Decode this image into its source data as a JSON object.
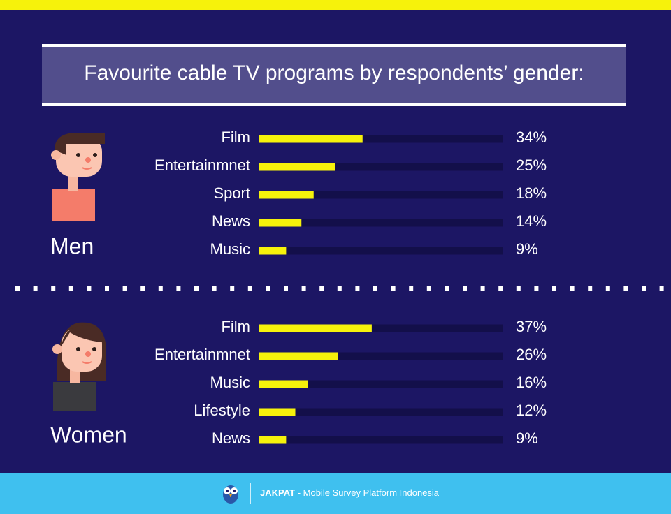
{
  "header": {
    "title": "Favourite cable TV programs by respondents’ gender:"
  },
  "chart_data": [
    {
      "type": "bar",
      "orientation": "horizontal",
      "title": "Men",
      "categories": [
        "Film",
        "Entertainmnet",
        "Sport",
        "News",
        "Music"
      ],
      "values": [
        34,
        25,
        18,
        14,
        9
      ],
      "value_labels": [
        "34%",
        "25%",
        "18%",
        "14%",
        "9%"
      ],
      "color": "#f6f20b",
      "track_color": "#130f4a",
      "xlim": [
        0,
        80
      ]
    },
    {
      "type": "bar",
      "orientation": "horizontal",
      "title": "Women",
      "categories": [
        "Film",
        "Entertainmnet",
        "Music",
        "Lifestyle",
        "News"
      ],
      "values": [
        37,
        26,
        16,
        12,
        9
      ],
      "value_labels": [
        "37%",
        "26%",
        "16%",
        "12%",
        "9%"
      ],
      "color": "#f6f20b",
      "track_color": "#130f4a",
      "xlim": [
        0,
        80
      ]
    }
  ],
  "footer": {
    "brand": "JAKPAT",
    "tagline": "- Mobile Survey Platform Indonesia"
  }
}
